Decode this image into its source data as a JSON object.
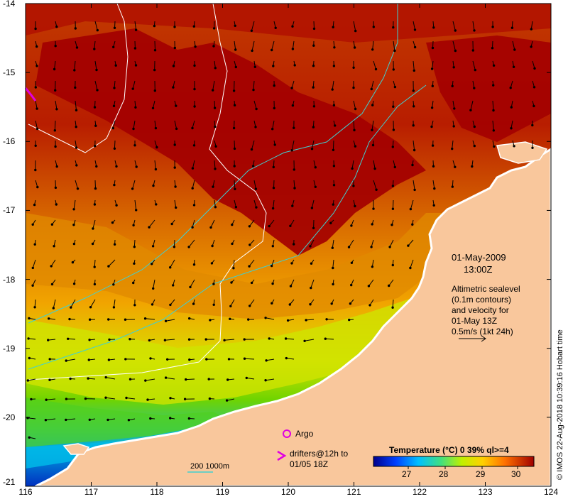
{
  "map": {
    "lon_ticks": [
      "116",
      "117",
      "118",
      "119",
      "120",
      "121",
      "122",
      "123",
      "124"
    ],
    "lat_ticks": [
      "-14",
      "-15",
      "-16",
      "-17",
      "-18",
      "-19",
      "-20",
      "-21"
    ],
    "date_label": "01-May-2009",
    "time_label": "13:00Z",
    "description_lines": [
      "Altimetric sealevel",
      "(0.1m contours)",
      "and velocity for",
      "01-May 13Z",
      "0.5m/s (1kt 24h)"
    ],
    "argo_label": "Argo",
    "drifters_label_lines": [
      "drifters@12h to",
      "01/05 18Z"
    ],
    "isobath_label": "200  1000m",
    "colorbar_title": "Temperature (°C) 0 39% ql>=4",
    "colorbar_ticks": [
      "27",
      "28",
      "29",
      "30"
    ],
    "credit": "© IMOS 22-Aug-2018 10:39:16 Hobart time",
    "colors": {
      "land": "#f9c79c",
      "hot": "#a10000",
      "warm": "#d86a00",
      "mid": "#f1a400",
      "cool": "#d8e000",
      "green": "#60d000",
      "cyan": "#00c8d8",
      "blue": "#0030d0",
      "contour": "#ffffff",
      "isobath": "#40d0d0",
      "argo": "#e000e0"
    }
  }
}
